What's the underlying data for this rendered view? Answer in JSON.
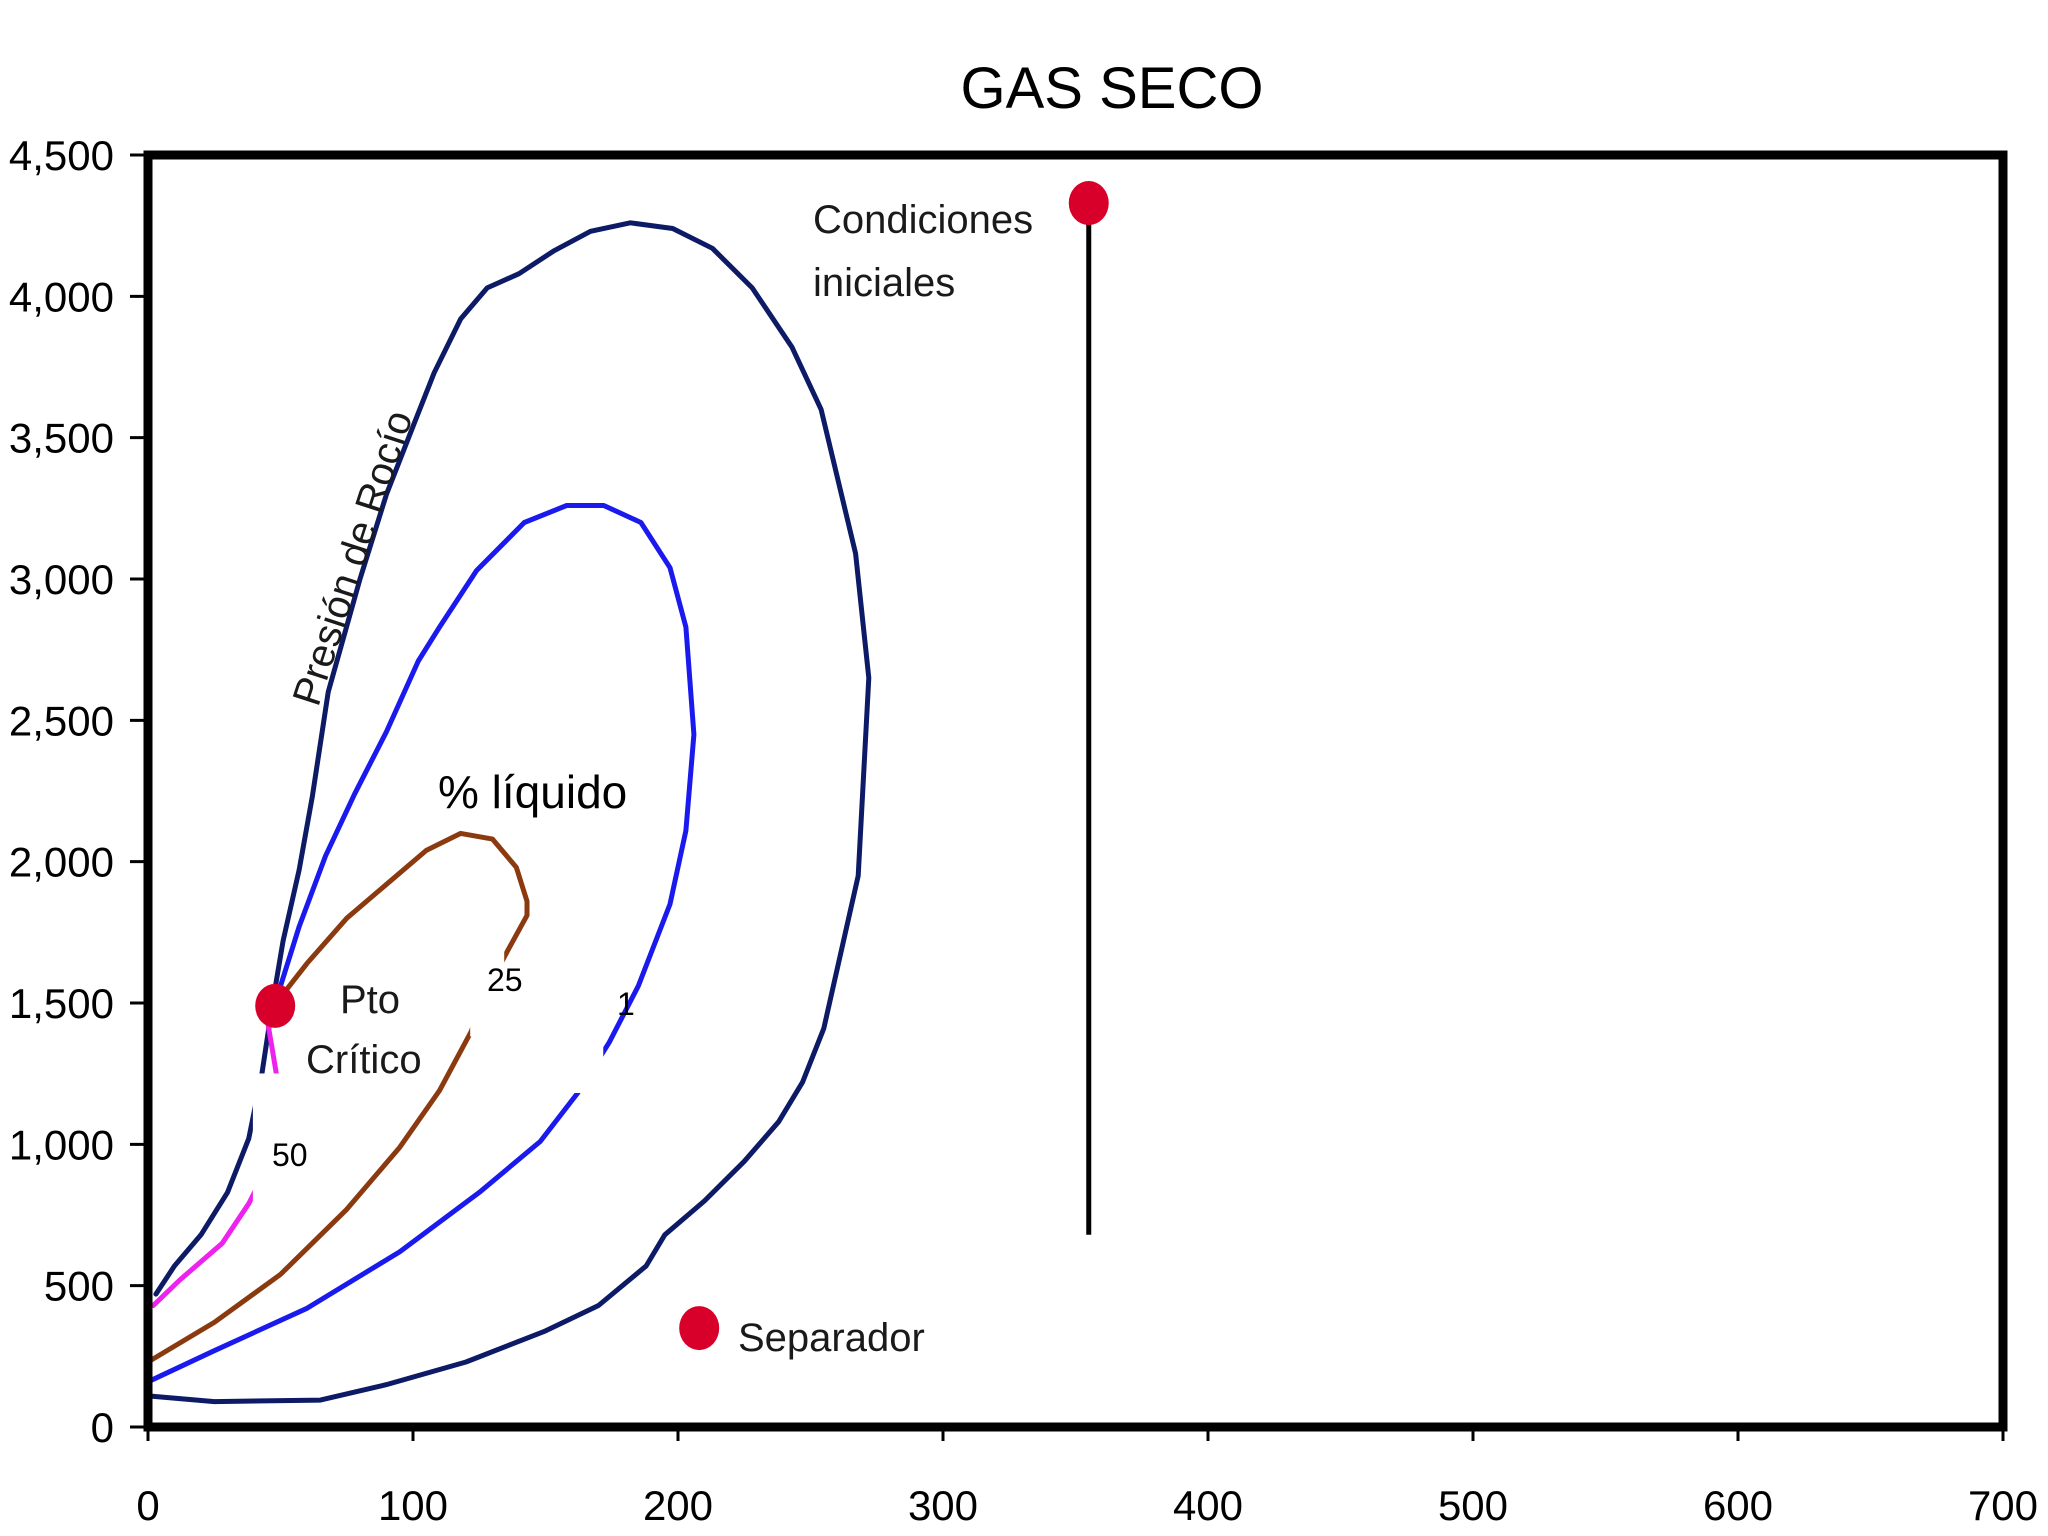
{
  "chart_data": {
    "type": "line",
    "title": "GAS SECO",
    "xlabel": "",
    "ylabel": "",
    "xlim": [
      0,
      700
    ],
    "ylim": [
      0,
      4500
    ],
    "x_ticks": [
      0,
      100,
      200,
      300,
      400,
      500,
      600,
      700
    ],
    "y_ticks": [
      0,
      500,
      1000,
      1500,
      2000,
      2500,
      3000,
      3500,
      4000,
      4500
    ],
    "x_tick_labels": [
      "0",
      "100",
      "200",
      "300",
      "400",
      "500",
      "600",
      "700"
    ],
    "y_tick_labels": [
      "0",
      "500",
      "1,000",
      "1,500",
      "2,000",
      "2,500",
      "3,000",
      "3,500",
      "4,000",
      "4,500"
    ],
    "grid": false,
    "series": [
      {
        "name": "Presión de Rocío",
        "color": "#0d1a66",
        "points": [
          [
            0,
            110
          ],
          [
            25,
            90
          ],
          [
            65,
            95
          ],
          [
            90,
            150
          ],
          [
            120,
            230
          ],
          [
            150,
            340
          ],
          [
            170,
            430
          ],
          [
            188,
            570
          ],
          [
            195,
            680
          ],
          [
            210,
            800
          ],
          [
            225,
            940
          ],
          [
            238,
            1080
          ],
          [
            247,
            1220
          ],
          [
            255,
            1410
          ],
          [
            268,
            1950
          ],
          [
            272,
            2650
          ],
          [
            267,
            3090
          ],
          [
            254,
            3600
          ],
          [
            243,
            3820
          ],
          [
            228,
            4030
          ],
          [
            213,
            4170
          ],
          [
            198,
            4240
          ],
          [
            182,
            4260
          ],
          [
            167,
            4230
          ],
          [
            153,
            4160
          ],
          [
            140,
            4080
          ],
          [
            128,
            4030
          ],
          [
            118,
            3920
          ],
          [
            108,
            3730
          ],
          [
            100,
            3540
          ],
          [
            90,
            3300
          ],
          [
            80,
            3000
          ],
          [
            68,
            2600
          ],
          [
            62,
            2230
          ],
          [
            57,
            1970
          ],
          [
            51,
            1720
          ],
          [
            47,
            1500
          ],
          [
            43,
            1250
          ],
          [
            38,
            1020
          ],
          [
            30,
            830
          ],
          [
            20,
            680
          ],
          [
            10,
            570
          ],
          [
            3,
            470
          ]
        ]
      },
      {
        "name": "1",
        "color": "#1a1aee",
        "points": [
          [
            0,
            160
          ],
          [
            25,
            270
          ],
          [
            60,
            420
          ],
          [
            95,
            620
          ],
          [
            125,
            830
          ],
          [
            148,
            1010
          ],
          [
            162,
            1180
          ],
          [
            174,
            1360
          ],
          [
            185,
            1560
          ],
          [
            197,
            1850
          ],
          [
            203,
            2110
          ],
          [
            206,
            2450
          ],
          [
            203,
            2830
          ],
          [
            197,
            3040
          ],
          [
            186,
            3200
          ],
          [
            172,
            3260
          ],
          [
            158,
            3260
          ],
          [
            142,
            3200
          ],
          [
            124,
            3030
          ],
          [
            110,
            2830
          ],
          [
            102,
            2710
          ],
          [
            90,
            2460
          ],
          [
            78,
            2240
          ],
          [
            67,
            2020
          ],
          [
            57,
            1770
          ],
          [
            48,
            1500
          ]
        ]
      },
      {
        "name": "25",
        "color": "#8b3a10",
        "points": [
          [
            0,
            230
          ],
          [
            25,
            370
          ],
          [
            50,
            540
          ],
          [
            75,
            770
          ],
          [
            95,
            990
          ],
          [
            110,
            1190
          ],
          [
            122,
            1400
          ],
          [
            128,
            1550
          ],
          [
            136,
            1690
          ],
          [
            143,
            1810
          ],
          [
            143,
            1860
          ],
          [
            139,
            1980
          ],
          [
            130,
            2080
          ],
          [
            118,
            2100
          ],
          [
            105,
            2040
          ],
          [
            90,
            1920
          ],
          [
            75,
            1800
          ],
          [
            60,
            1640
          ],
          [
            50,
            1520
          ]
        ]
      },
      {
        "name": "50",
        "color": "#ee22ee",
        "points": [
          [
            2,
            430
          ],
          [
            12,
            520
          ],
          [
            28,
            650
          ],
          [
            38,
            790
          ],
          [
            45,
            920
          ],
          [
            50,
            1160
          ],
          [
            47,
            1330
          ],
          [
            45,
            1440
          ]
        ]
      }
    ],
    "points": [
      {
        "name": "Condiciones iniciales",
        "x": 355,
        "y": 4330,
        "color": "#d8002a"
      },
      {
        "name": "Pto Crítico",
        "x": 48,
        "y": 1490,
        "color": "#d8002a"
      },
      {
        "name": "Separador",
        "x": 208,
        "y": 350,
        "color": "#d8002a"
      }
    ],
    "vertical_line": {
      "x": 355,
      "y_from": 680,
      "y_to": 4330
    },
    "annotations": {
      "dew_pressure": "Presión de Rocío",
      "liquid_pct": "% líquido",
      "initial_conditions_line1": "Condiciones",
      "initial_conditions_line2": "iniciales",
      "critical_point_line1": "Pto",
      "critical_point_line2": "Crítico",
      "separator": "Separador",
      "curve_1": "1",
      "curve_25": "25",
      "curve_50": "50"
    }
  }
}
